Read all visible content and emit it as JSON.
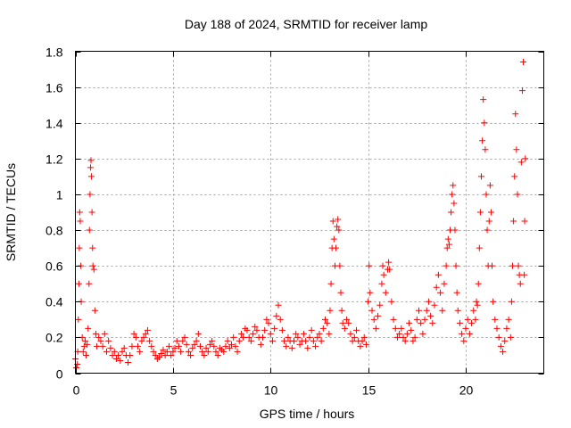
{
  "chart_data": {
    "type": "scatter",
    "title": "Day 188 of 2024, SRMTID for receiver lamp",
    "xlabel": "GPS time / hours",
    "ylabel": "SRMTID / TECUs",
    "xlim": [
      0,
      24
    ],
    "ylim": [
      0,
      1.8
    ],
    "x_ticks": [
      0,
      5,
      10,
      15,
      20
    ],
    "x_tick_labels": [
      "0",
      "5",
      "10",
      "15",
      "20"
    ],
    "y_ticks": [
      0,
      0.2,
      0.4,
      0.6,
      0.8,
      1,
      1.2,
      1.4,
      1.6,
      1.8
    ],
    "y_tick_labels": [
      "0",
      "0.2",
      "0.4",
      "0.6",
      "0.8",
      "1",
      "1.2",
      "1.4",
      "1.6",
      "1.8"
    ],
    "grid": true,
    "marker": "+",
    "series": [
      {
        "name": "SRMTID",
        "color": "#ff0000",
        "points": [
          [
            0.0,
            0.08
          ],
          [
            0.05,
            0.03
          ],
          [
            0.1,
            0.05
          ],
          [
            0.12,
            0.12
          ],
          [
            0.15,
            0.3
          ],
          [
            0.18,
            0.5
          ],
          [
            0.2,
            0.7
          ],
          [
            0.22,
            0.9
          ],
          [
            0.25,
            0.85
          ],
          [
            0.28,
            0.6
          ],
          [
            0.3,
            0.4
          ],
          [
            0.35,
            0.2
          ],
          [
            0.4,
            0.12
          ],
          [
            0.45,
            0.15
          ],
          [
            0.5,
            0.18
          ],
          [
            0.55,
            0.1
          ],
          [
            0.6,
            0.16
          ],
          [
            0.65,
            0.25
          ],
          [
            0.7,
            0.5
          ],
          [
            0.72,
            0.8
          ],
          [
            0.75,
            1.0
          ],
          [
            0.78,
            1.15
          ],
          [
            0.8,
            1.19
          ],
          [
            0.82,
            1.1
          ],
          [
            0.85,
            0.9
          ],
          [
            0.88,
            0.7
          ],
          [
            0.9,
            0.6
          ],
          [
            0.95,
            0.58
          ],
          [
            1.0,
            0.35
          ],
          [
            1.05,
            0.22
          ],
          [
            1.1,
            0.15
          ],
          [
            1.2,
            0.2
          ],
          [
            1.3,
            0.18
          ],
          [
            1.4,
            0.15
          ],
          [
            1.5,
            0.22
          ],
          [
            1.6,
            0.12
          ],
          [
            1.7,
            0.18
          ],
          [
            1.8,
            0.14
          ],
          [
            1.9,
            0.1
          ],
          [
            2.0,
            0.12
          ],
          [
            2.1,
            0.08
          ],
          [
            2.2,
            0.1
          ],
          [
            2.3,
            0.07
          ],
          [
            2.4,
            0.12
          ],
          [
            2.5,
            0.14
          ],
          [
            2.6,
            0.1
          ],
          [
            2.7,
            0.06
          ],
          [
            2.8,
            0.1
          ],
          [
            2.9,
            0.15
          ],
          [
            3.0,
            0.22
          ],
          [
            3.1,
            0.2
          ],
          [
            3.2,
            0.15
          ],
          [
            3.3,
            0.12
          ],
          [
            3.4,
            0.18
          ],
          [
            3.5,
            0.2
          ],
          [
            3.6,
            0.22
          ],
          [
            3.7,
            0.24
          ],
          [
            3.8,
            0.18
          ],
          [
            3.9,
            0.15
          ],
          [
            4.0,
            0.12
          ],
          [
            4.1,
            0.1
          ],
          [
            4.2,
            0.08
          ],
          [
            4.3,
            0.09
          ],
          [
            4.4,
            0.11
          ],
          [
            4.5,
            0.13
          ],
          [
            4.6,
            0.1
          ],
          [
            4.7,
            0.12
          ],
          [
            4.8,
            0.15
          ],
          [
            4.9,
            0.1
          ],
          [
            5.0,
            0.12
          ],
          [
            5.1,
            0.14
          ],
          [
            5.2,
            0.18
          ],
          [
            5.3,
            0.15
          ],
          [
            5.4,
            0.12
          ],
          [
            5.5,
            0.18
          ],
          [
            5.6,
            0.2
          ],
          [
            5.7,
            0.16
          ],
          [
            5.8,
            0.12
          ],
          [
            5.9,
            0.1
          ],
          [
            6.0,
            0.14
          ],
          [
            6.1,
            0.16
          ],
          [
            6.2,
            0.18
          ],
          [
            6.3,
            0.22
          ],
          [
            6.4,
            0.15
          ],
          [
            6.5,
            0.12
          ],
          [
            6.6,
            0.1
          ],
          [
            6.7,
            0.14
          ],
          [
            6.8,
            0.12
          ],
          [
            6.9,
            0.16
          ],
          [
            7.0,
            0.18
          ],
          [
            7.1,
            0.15
          ],
          [
            7.2,
            0.12
          ],
          [
            7.3,
            0.1
          ],
          [
            7.4,
            0.14
          ],
          [
            7.5,
            0.13
          ],
          [
            7.6,
            0.12
          ],
          [
            7.7,
            0.15
          ],
          [
            7.8,
            0.18
          ],
          [
            7.9,
            0.14
          ],
          [
            8.0,
            0.16
          ],
          [
            8.1,
            0.2
          ],
          [
            8.2,
            0.15
          ],
          [
            8.3,
            0.12
          ],
          [
            8.4,
            0.18
          ],
          [
            8.5,
            0.22
          ],
          [
            8.6,
            0.2
          ],
          [
            8.7,
            0.25
          ],
          [
            8.8,
            0.24
          ],
          [
            8.9,
            0.2
          ],
          [
            9.0,
            0.18
          ],
          [
            9.1,
            0.22
          ],
          [
            9.2,
            0.26
          ],
          [
            9.3,
            0.24
          ],
          [
            9.4,
            0.2
          ],
          [
            9.5,
            0.16
          ],
          [
            9.6,
            0.2
          ],
          [
            9.7,
            0.24
          ],
          [
            9.8,
            0.3
          ],
          [
            9.9,
            0.28
          ],
          [
            10.0,
            0.22
          ],
          [
            10.1,
            0.18
          ],
          [
            10.2,
            0.25
          ],
          [
            10.3,
            0.32
          ],
          [
            10.4,
            0.38
          ],
          [
            10.5,
            0.3
          ],
          [
            10.6,
            0.24
          ],
          [
            10.7,
            0.18
          ],
          [
            10.8,
            0.15
          ],
          [
            10.9,
            0.2
          ],
          [
            11.0,
            0.18
          ],
          [
            11.1,
            0.14
          ],
          [
            11.2,
            0.18
          ],
          [
            11.3,
            0.22
          ],
          [
            11.4,
            0.2
          ],
          [
            11.5,
            0.16
          ],
          [
            11.6,
            0.18
          ],
          [
            11.7,
            0.22
          ],
          [
            11.8,
            0.18
          ],
          [
            11.9,
            0.14
          ],
          [
            12.0,
            0.2
          ],
          [
            12.1,
            0.24
          ],
          [
            12.2,
            0.18
          ],
          [
            12.3,
            0.15
          ],
          [
            12.4,
            0.2
          ],
          [
            12.5,
            0.22
          ],
          [
            12.6,
            0.18
          ],
          [
            12.7,
            0.25
          ],
          [
            12.8,
            0.3
          ],
          [
            12.9,
            0.28
          ],
          [
            13.0,
            0.22
          ],
          [
            13.05,
            0.35
          ],
          [
            13.1,
            0.5
          ],
          [
            13.15,
            0.7
          ],
          [
            13.2,
            0.85
          ],
          [
            13.25,
            0.75
          ],
          [
            13.3,
            0.6
          ],
          [
            13.35,
            0.7
          ],
          [
            13.4,
            0.82
          ],
          [
            13.45,
            0.86
          ],
          [
            13.5,
            0.8
          ],
          [
            13.55,
            0.6
          ],
          [
            13.6,
            0.45
          ],
          [
            13.65,
            0.35
          ],
          [
            13.7,
            0.28
          ],
          [
            13.8,
            0.25
          ],
          [
            13.9,
            0.3
          ],
          [
            14.0,
            0.28
          ],
          [
            14.1,
            0.22
          ],
          [
            14.2,
            0.18
          ],
          [
            14.3,
            0.2
          ],
          [
            14.4,
            0.24
          ],
          [
            14.5,
            0.18
          ],
          [
            14.6,
            0.15
          ],
          [
            14.7,
            0.18
          ],
          [
            14.8,
            0.2
          ],
          [
            14.9,
            0.16
          ],
          [
            15.0,
            0.4
          ],
          [
            15.05,
            0.6
          ],
          [
            15.1,
            0.45
          ],
          [
            15.2,
            0.35
          ],
          [
            15.3,
            0.3
          ],
          [
            15.4,
            0.25
          ],
          [
            15.5,
            0.32
          ],
          [
            15.6,
            0.38
          ],
          [
            15.7,
            0.5
          ],
          [
            15.75,
            0.6
          ],
          [
            15.8,
            0.55
          ],
          [
            15.9,
            0.45
          ],
          [
            16.0,
            0.58
          ],
          [
            16.05,
            0.62
          ],
          [
            16.1,
            0.58
          ],
          [
            16.2,
            0.4
          ],
          [
            16.3,
            0.3
          ],
          [
            16.4,
            0.25
          ],
          [
            16.5,
            0.2
          ],
          [
            16.6,
            0.22
          ],
          [
            16.7,
            0.25
          ],
          [
            16.8,
            0.2
          ],
          [
            16.9,
            0.18
          ],
          [
            17.0,
            0.22
          ],
          [
            17.1,
            0.28
          ],
          [
            17.2,
            0.24
          ],
          [
            17.3,
            0.18
          ],
          [
            17.4,
            0.2
          ],
          [
            17.5,
            0.3
          ],
          [
            17.6,
            0.35
          ],
          [
            17.7,
            0.28
          ],
          [
            17.8,
            0.22
          ],
          [
            17.9,
            0.3
          ],
          [
            18.0,
            0.35
          ],
          [
            18.1,
            0.4
          ],
          [
            18.2,
            0.32
          ],
          [
            18.3,
            0.28
          ],
          [
            18.4,
            0.38
          ],
          [
            18.5,
            0.48
          ],
          [
            18.6,
            0.55
          ],
          [
            18.7,
            0.45
          ],
          [
            18.8,
            0.35
          ],
          [
            18.9,
            0.5
          ],
          [
            19.0,
            0.6
          ],
          [
            19.05,
            0.7
          ],
          [
            19.1,
            0.75
          ],
          [
            19.15,
            0.72
          ],
          [
            19.2,
            0.8
          ],
          [
            19.25,
            0.9
          ],
          [
            19.3,
            1.0
          ],
          [
            19.35,
            1.05
          ],
          [
            19.4,
            0.95
          ],
          [
            19.45,
            0.8
          ],
          [
            19.5,
            0.6
          ],
          [
            19.55,
            0.45
          ],
          [
            19.6,
            0.35
          ],
          [
            19.7,
            0.28
          ],
          [
            19.8,
            0.22
          ],
          [
            19.9,
            0.18
          ],
          [
            20.0,
            0.25
          ],
          [
            20.1,
            0.3
          ],
          [
            20.2,
            0.22
          ],
          [
            20.3,
            0.28
          ],
          [
            20.4,
            0.35
          ],
          [
            20.5,
            0.3
          ],
          [
            20.55,
            0.4
          ],
          [
            20.6,
            0.38
          ],
          [
            20.65,
            0.5
          ],
          [
            20.7,
            0.7
          ],
          [
            20.75,
            0.9
          ],
          [
            20.8,
            1.1
          ],
          [
            20.85,
            1.3
          ],
          [
            20.9,
            1.53
          ],
          [
            20.95,
            1.4
          ],
          [
            21.0,
            1.25
          ],
          [
            21.05,
            1.0
          ],
          [
            21.1,
            0.8
          ],
          [
            21.15,
            0.6
          ],
          [
            21.2,
            0.85
          ],
          [
            21.25,
            1.05
          ],
          [
            21.3,
            0.9
          ],
          [
            21.35,
            0.6
          ],
          [
            21.4,
            0.4
          ],
          [
            21.5,
            0.3
          ],
          [
            21.6,
            0.25
          ],
          [
            21.7,
            0.2
          ],
          [
            21.8,
            0.15
          ],
          [
            21.9,
            0.12
          ],
          [
            22.0,
            0.18
          ],
          [
            22.1,
            0.25
          ],
          [
            22.2,
            0.3
          ],
          [
            22.3,
            0.2
          ],
          [
            22.35,
            0.4
          ],
          [
            22.4,
            0.6
          ],
          [
            22.45,
            0.85
          ],
          [
            22.5,
            1.1
          ],
          [
            22.55,
            1.45
          ],
          [
            22.6,
            1.25
          ],
          [
            22.65,
            1.0
          ],
          [
            22.7,
            0.6
          ],
          [
            22.75,
            0.55
          ],
          [
            22.8,
            0.5
          ],
          [
            22.85,
            1.18
          ],
          [
            22.9,
            1.58
          ],
          [
            22.95,
            1.74
          ],
          [
            23.0,
            0.55
          ],
          [
            23.02,
            0.85
          ],
          [
            23.05,
            1.2
          ]
        ]
      }
    ]
  }
}
